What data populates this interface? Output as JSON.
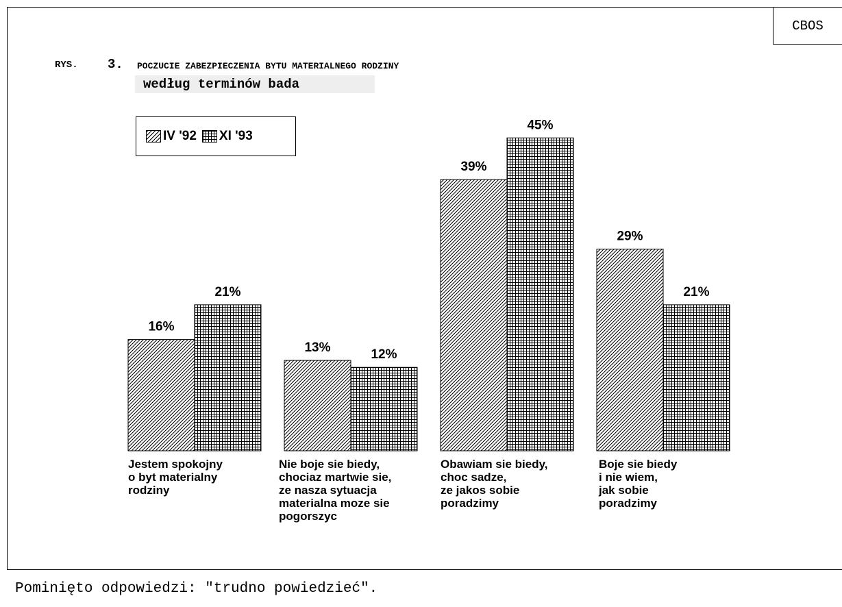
{
  "header": {
    "org": "CBOS"
  },
  "title": {
    "prefix": "RYS.",
    "number": "3.",
    "main": "POCZUCIE ZABEZPIECZENIA BYTU MATERIALNEGO RODZINY",
    "subtitle": "według terminów bada"
  },
  "footnote": "Pominięto odpowiedzi: \"trudno powiedzieć\".",
  "chart_data": {
    "type": "bar",
    "title": "POCZUCIE ZABEZPIECZENIA BYTU MATERIALNEGO RODZINY",
    "subtitle": "według terminów bada",
    "categories": [
      "Jestem spokojny\no byt materialny\nrodziny",
      "Nie boje sie biedy,\nchociaz martwie sie,\nze nasza sytuacja\nmaterialna moze sie\npogorszyc",
      "Obawiam sie biedy,\nchoc sadze,\nze jakos sobie\nporadzimy",
      "Boje sie biedy\ni nie wiem,\njak sobie\nporadzimy"
    ],
    "series": [
      {
        "name": "IV '92",
        "pattern": "diagonal-hatch",
        "values": [
          16,
          13,
          39,
          29
        ],
        "labels": [
          "16%",
          "13%",
          "39%",
          "29%"
        ]
      },
      {
        "name": "XI '93",
        "pattern": "crosshatch-grid",
        "values": [
          21,
          12,
          45,
          21
        ],
        "labels": [
          "21%",
          "12%",
          "45%",
          "21%"
        ]
      }
    ],
    "unit": "%",
    "ylim": [
      0,
      50
    ],
    "grid": false,
    "legend_position": "top-left",
    "colors": {
      "stroke": "#000000",
      "fill": "#ffffff"
    }
  }
}
